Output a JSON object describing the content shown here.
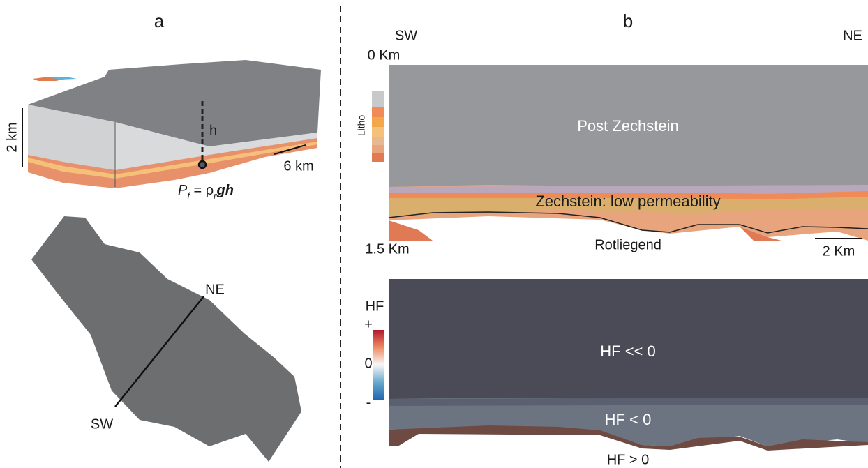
{
  "panel_a": {
    "label": "a",
    "block": {
      "height_scale": "2 km",
      "depth_symbol": "h",
      "length_scale": "6 km",
      "formula": {
        "p": "P",
        "p_sub": "f",
        "eq": " = ρ",
        "rho_sub": "r",
        "gh": "gh"
      }
    },
    "map": {
      "ne": "NE",
      "sw": "SW"
    }
  },
  "panel_b": {
    "label": "b",
    "section": {
      "left": "SW",
      "right": "NE",
      "top_depth": "0 Km",
      "bottom_depth": "1.5 Km",
      "legend": "Litho",
      "layers": [
        "Post Zechstein",
        "Zechstein: low permeability",
        "Rotliegend"
      ],
      "scale": "2 Km"
    },
    "hf": {
      "legend_title": "HF",
      "legend_ticks": [
        "+",
        "0",
        "-"
      ],
      "zones": [
        "HF << 0",
        "HF < 0",
        "HF > 0"
      ]
    }
  }
}
